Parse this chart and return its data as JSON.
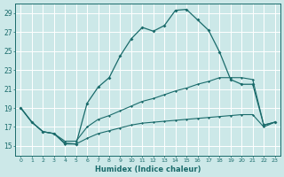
{
  "bg_color": "#cce8e8",
  "grid_color": "#aacccc",
  "line_color": "#1a6b6b",
  "xlabel": "Humidex (Indice chaleur)",
  "xlim": [
    -0.5,
    23.5
  ],
  "ylim": [
    14,
    30
  ],
  "yticks": [
    15,
    17,
    19,
    21,
    23,
    25,
    27,
    29
  ],
  "xticks": [
    0,
    1,
    2,
    3,
    4,
    5,
    6,
    7,
    8,
    9,
    10,
    11,
    12,
    13,
    14,
    15,
    16,
    17,
    18,
    19,
    20,
    21,
    22,
    23
  ],
  "series1": [
    [
      0,
      19
    ],
    [
      1,
      17.5
    ],
    [
      2,
      16.5
    ],
    [
      3,
      16.3
    ],
    [
      4,
      15.3
    ],
    [
      5,
      15.2
    ],
    [
      6,
      19.5
    ],
    [
      7,
      21.2
    ],
    [
      8,
      22.2
    ],
    [
      9,
      24.5
    ],
    [
      10,
      26.3
    ],
    [
      11,
      27.5
    ],
    [
      12,
      27.1
    ],
    [
      13,
      27.7
    ],
    [
      14,
      29.3
    ],
    [
      15,
      29.4
    ],
    [
      16,
      28.3
    ],
    [
      17,
      27.2
    ],
    [
      18,
      24.9
    ],
    [
      19,
      22.0
    ],
    [
      20,
      21.5
    ],
    [
      21,
      21.5
    ],
    [
      22,
      17.2
    ],
    [
      23,
      17.5
    ]
  ],
  "series2": [
    [
      0,
      19
    ],
    [
      1,
      17.5
    ],
    [
      2,
      16.5
    ],
    [
      3,
      16.3
    ],
    [
      4,
      15.5
    ],
    [
      5,
      15.5
    ],
    [
      6,
      17.0
    ],
    [
      7,
      17.8
    ],
    [
      8,
      18.2
    ],
    [
      9,
      18.7
    ],
    [
      10,
      19.2
    ],
    [
      11,
      19.7
    ],
    [
      12,
      20.0
    ],
    [
      13,
      20.4
    ],
    [
      14,
      20.8
    ],
    [
      15,
      21.1
    ],
    [
      16,
      21.5
    ],
    [
      17,
      21.8
    ],
    [
      18,
      22.2
    ],
    [
      19,
      22.2
    ],
    [
      20,
      22.2
    ],
    [
      21,
      22.0
    ],
    [
      22,
      17.2
    ],
    [
      23,
      17.5
    ]
  ],
  "series3": [
    [
      0,
      19
    ],
    [
      1,
      17.5
    ],
    [
      2,
      16.5
    ],
    [
      3,
      16.3
    ],
    [
      4,
      15.2
    ],
    [
      5,
      15.2
    ],
    [
      6,
      15.8
    ],
    [
      7,
      16.3
    ],
    [
      8,
      16.6
    ],
    [
      9,
      16.9
    ],
    [
      10,
      17.2
    ],
    [
      11,
      17.4
    ],
    [
      12,
      17.5
    ],
    [
      13,
      17.6
    ],
    [
      14,
      17.7
    ],
    [
      15,
      17.8
    ],
    [
      16,
      17.9
    ],
    [
      17,
      18.0
    ],
    [
      18,
      18.1
    ],
    [
      19,
      18.2
    ],
    [
      20,
      18.3
    ],
    [
      21,
      18.3
    ],
    [
      22,
      17.0
    ],
    [
      23,
      17.5
    ]
  ]
}
